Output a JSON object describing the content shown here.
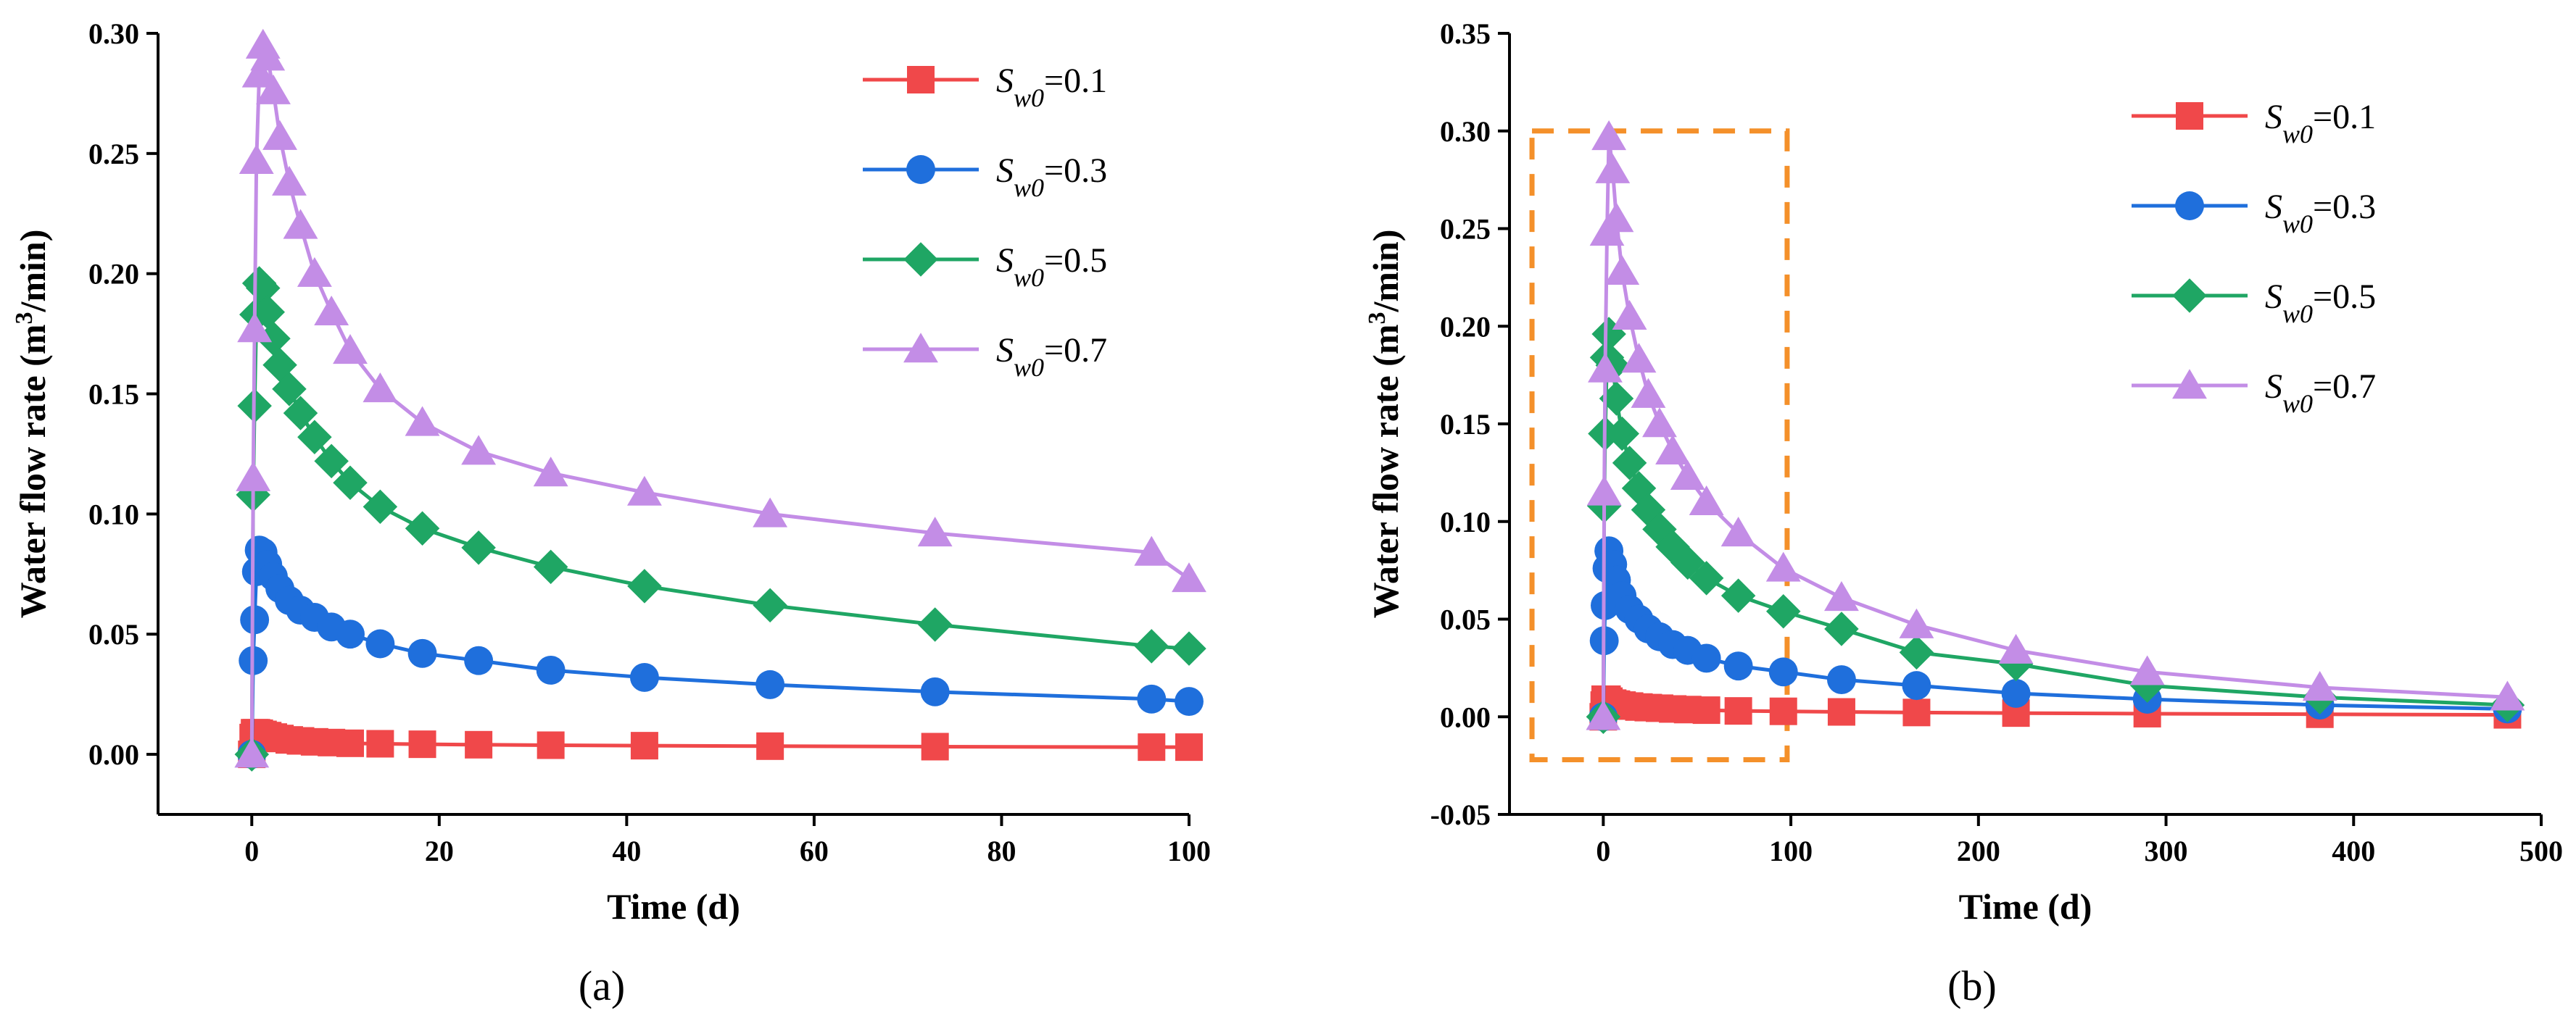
{
  "chart_data": [
    {
      "type": "line",
      "panel_label": "(a)",
      "xlabel": "Time (d)",
      "ylabel_main": "Water flow rate (m",
      "ylabel_sup": "3",
      "ylabel_end": "/min)",
      "xlim": [
        -10,
        100
      ],
      "ylim": [
        -0.025,
        0.3
      ],
      "xticks": [
        0,
        20,
        40,
        60,
        80,
        100
      ],
      "yticks": [
        0.0,
        0.05,
        0.1,
        0.15,
        0.2,
        0.25,
        0.3
      ],
      "xtick_labels": [
        "0",
        "20",
        "40",
        "60",
        "80",
        "100"
      ],
      "ytick_labels": [
        "0.00",
        "0.05",
        "0.10",
        "0.15",
        "0.20",
        "0.25",
        "0.30"
      ],
      "legend_position": "top-right",
      "series": [
        {
          "name_symbol": "S",
          "name_subscript": "w0",
          "name_value": "=0.1",
          "color": "#f0484a",
          "marker": "square",
          "x": [
            0,
            0.15,
            0.3,
            0.5,
            0.8,
            1.2,
            1.7,
            2.3,
            3.0,
            4.0,
            5.2,
            6.7,
            8.5,
            10.5,
            13.7,
            18.2,
            24.2,
            31.9,
            41.9,
            55.3,
            72.9,
            96.0,
            100
          ],
          "y": [
            0.0,
            0.007,
            0.009,
            0.009,
            0.0088,
            0.0083,
            0.0078,
            0.0072,
            0.0066,
            0.006,
            0.0056,
            0.0052,
            0.0049,
            0.0046,
            0.0044,
            0.0042,
            0.004,
            0.0038,
            0.0036,
            0.0034,
            0.0032,
            0.003,
            0.003
          ]
        },
        {
          "name_symbol": "S",
          "name_subscript": "w0",
          "name_value": "=0.3",
          "color": "#1f6fdc",
          "marker": "circle",
          "x": [
            0,
            0.15,
            0.3,
            0.5,
            0.8,
            1.2,
            1.7,
            2.3,
            3.0,
            4.0,
            5.2,
            6.7,
            8.5,
            10.5,
            13.7,
            18.2,
            24.2,
            31.9,
            41.9,
            55.3,
            72.9,
            96.0,
            100
          ],
          "y": [
            0.0,
            0.039,
            0.056,
            0.076,
            0.085,
            0.084,
            0.079,
            0.074,
            0.069,
            0.064,
            0.06,
            0.057,
            0.053,
            0.05,
            0.046,
            0.042,
            0.039,
            0.035,
            0.032,
            0.029,
            0.026,
            0.023,
            0.022
          ]
        },
        {
          "name_symbol": "S",
          "name_subscript": "w0",
          "name_value": "=0.5",
          "color": "#1fa664",
          "marker": "diamond",
          "x": [
            0,
            0.15,
            0.3,
            0.5,
            0.8,
            1.2,
            1.7,
            2.3,
            3.0,
            4.0,
            5.2,
            6.7,
            8.5,
            10.5,
            13.7,
            18.2,
            24.2,
            31.9,
            41.9,
            55.3,
            72.9,
            96.0,
            100
          ],
          "y": [
            0.0,
            0.108,
            0.145,
            0.183,
            0.196,
            0.194,
            0.184,
            0.173,
            0.162,
            0.152,
            0.142,
            0.132,
            0.122,
            0.113,
            0.103,
            0.094,
            0.086,
            0.078,
            0.07,
            0.062,
            0.054,
            0.045,
            0.044
          ]
        },
        {
          "name_symbol": "S",
          "name_subscript": "w0",
          "name_value": "=0.7",
          "color": "#c38de6",
          "marker": "triangle",
          "x": [
            0,
            0.15,
            0.3,
            0.5,
            0.8,
            1.2,
            1.7,
            2.3,
            3.0,
            4.0,
            5.2,
            6.7,
            8.5,
            10.5,
            13.7,
            18.2,
            24.2,
            31.9,
            41.9,
            55.3,
            72.9,
            96.0,
            100
          ],
          "y": [
            0.0,
            0.115,
            0.177,
            0.247,
            0.283,
            0.295,
            0.29,
            0.276,
            0.257,
            0.238,
            0.22,
            0.2,
            0.184,
            0.168,
            0.152,
            0.138,
            0.126,
            0.117,
            0.109,
            0.1,
            0.092,
            0.084,
            0.073
          ]
        }
      ]
    },
    {
      "type": "line",
      "panel_label": "(b)",
      "xlabel": "Time (d)",
      "ylabel_main": "Water flow rate (m",
      "ylabel_sup": "3",
      "ylabel_end": "/min)",
      "xlim": [
        -50,
        500
      ],
      "ylim": [
        -0.05,
        0.35
      ],
      "xticks": [
        0,
        100,
        200,
        300,
        400,
        500
      ],
      "yticks": [
        -0.05,
        0.0,
        0.05,
        0.1,
        0.15,
        0.2,
        0.25,
        0.3,
        0.35
      ],
      "xtick_labels": [
        "0",
        "100",
        "200",
        "300",
        "400",
        "500"
      ],
      "ytick_labels": [
        "-0.05",
        "0.00",
        "0.05",
        "0.10",
        "0.15",
        "0.20",
        "0.25",
        "0.30",
        "0.35"
      ],
      "legend_position": "top-right",
      "highlight_box": {
        "x": [
          -38,
          98
        ],
        "y": [
          -0.022,
          0.3
        ],
        "color": "#f4902a"
      },
      "series": [
        {
          "name_symbol": "S",
          "name_subscript": "w0",
          "name_value": "=0.1",
          "color": "#f0484a",
          "marker": "square",
          "x": [
            0,
            0.5,
            1,
            2,
            3,
            5,
            7,
            10,
            14,
            19,
            24,
            30,
            37,
            45,
            55,
            72,
            96,
            127,
            167,
            220,
            290,
            382,
            482
          ],
          "y": [
            0.0,
            0.006,
            0.009,
            0.009,
            0.008,
            0.007,
            0.0065,
            0.006,
            0.0055,
            0.005,
            0.0047,
            0.0044,
            0.004,
            0.0037,
            0.0034,
            0.003,
            0.0028,
            0.0025,
            0.0022,
            0.0019,
            0.0016,
            0.0013,
            0.001
          ]
        },
        {
          "name_symbol": "S",
          "name_subscript": "w0",
          "name_value": "=0.3",
          "color": "#1f6fdc",
          "marker": "circle",
          "x": [
            0,
            0.5,
            1,
            2,
            3,
            5,
            7,
            10,
            14,
            19,
            24,
            30,
            37,
            45,
            55,
            72,
            96,
            127,
            167,
            220,
            290,
            382,
            482
          ],
          "y": [
            0.0,
            0.039,
            0.057,
            0.076,
            0.085,
            0.078,
            0.07,
            0.062,
            0.055,
            0.05,
            0.045,
            0.041,
            0.037,
            0.034,
            0.03,
            0.026,
            0.023,
            0.019,
            0.016,
            0.012,
            0.009,
            0.006,
            0.004
          ]
        },
        {
          "name_symbol": "S",
          "name_subscript": "w0",
          "name_value": "=0.5",
          "color": "#1fa664",
          "marker": "diamond",
          "x": [
            0,
            0.5,
            1,
            2,
            3,
            5,
            7,
            10,
            14,
            19,
            24,
            30,
            37,
            45,
            55,
            72,
            96,
            127,
            167,
            220,
            290,
            382,
            482
          ],
          "y": [
            0.0,
            0.108,
            0.145,
            0.184,
            0.196,
            0.18,
            0.163,
            0.145,
            0.13,
            0.117,
            0.106,
            0.096,
            0.087,
            0.079,
            0.071,
            0.062,
            0.054,
            0.045,
            0.033,
            0.027,
            0.016,
            0.01,
            0.006
          ]
        },
        {
          "name_symbol": "S",
          "name_subscript": "w0",
          "name_value": "=0.7",
          "color": "#c38de6",
          "marker": "triangle",
          "x": [
            0,
            0.5,
            1,
            2,
            3,
            5,
            7,
            10,
            14,
            19,
            24,
            30,
            37,
            45,
            55,
            72,
            96,
            127,
            167,
            220,
            290,
            382,
            482
          ],
          "y": [
            0.0,
            0.115,
            0.178,
            0.248,
            0.297,
            0.28,
            0.255,
            0.228,
            0.205,
            0.183,
            0.165,
            0.15,
            0.136,
            0.123,
            0.11,
            0.094,
            0.076,
            0.061,
            0.047,
            0.034,
            0.023,
            0.015,
            0.01
          ]
        }
      ]
    }
  ]
}
